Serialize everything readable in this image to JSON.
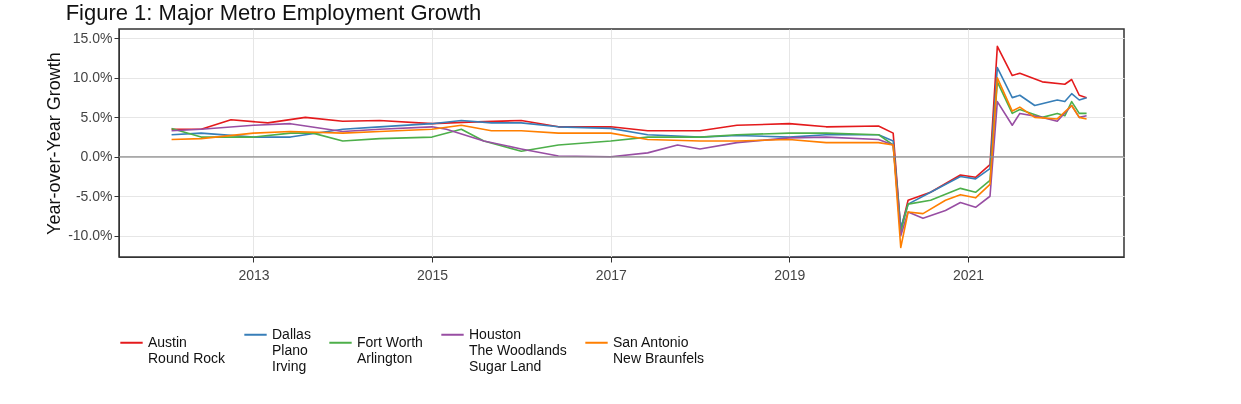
{
  "chart_data": {
    "type": "line",
    "title": "Figure 1: Major Metro Employment Growth",
    "ylabel": "Year-over-Year Growth",
    "xlim": [
      "2011-07",
      "2022-10"
    ],
    "xticks": [
      "2013",
      "2015",
      "2017",
      "2019",
      "2021"
    ],
    "ylim": [
      -12.7,
      16.2
    ],
    "yticks": [
      {
        "value": -10,
        "label": "-10.0%"
      },
      {
        "value": -5,
        "label": "-5.0%"
      },
      {
        "value": 0,
        "label": "0.0%"
      },
      {
        "value": 5,
        "label": "5.0%"
      },
      {
        "value": 10,
        "label": "10.0%"
      },
      {
        "value": 15,
        "label": "15.0%"
      }
    ],
    "grid": true,
    "legend": "bottom",
    "ref_lines": [
      {
        "axis": "y",
        "value": 0,
        "color": "#8c8c8c"
      }
    ],
    "series": [
      {
        "name": "Austin\nRound Rock",
        "color": "#e41a1c",
        "x": [
          "2012-02",
          "2012-06",
          "2012-10",
          "2013-03",
          "2013-08",
          "2014-01",
          "2014-06",
          "2015-01",
          "2015-06",
          "2016-01",
          "2016-06",
          "2017-01",
          "2017-06",
          "2018-01",
          "2018-06",
          "2019-01",
          "2019-06",
          "2020-01",
          "2020-03",
          "2020-04",
          "2020-05",
          "2020-08",
          "2020-12",
          "2021-02",
          "2021-04",
          "2021-05",
          "2021-07",
          "2021-08",
          "2021-11",
          "2022-02",
          "2022-03",
          "2022-04",
          "2022-05"
        ],
        "values": [
          3.5,
          3.5,
          4.7,
          4.3,
          5.0,
          4.5,
          4.6,
          4.2,
          4.4,
          4.6,
          3.8,
          3.8,
          3.3,
          3.3,
          4.0,
          4.2,
          3.8,
          3.9,
          3.0,
          -9.3,
          -5.5,
          -4.5,
          -2.3,
          -2.6,
          -1,
          14,
          10.3,
          10.6,
          9.5,
          9.2,
          9.8,
          7.8,
          7.5
        ]
      },
      {
        "name": "Dallas\nPlano\nIrving",
        "color": "#377eb8",
        "x": [
          "2012-02",
          "2012-06",
          "2013-01",
          "2013-06",
          "2014-01",
          "2014-06",
          "2015-01",
          "2015-05",
          "2015-09",
          "2016-01",
          "2016-06",
          "2017-01",
          "2017-06",
          "2018-01",
          "2018-06",
          "2019-01",
          "2019-06",
          "2020-01",
          "2020-03",
          "2020-04",
          "2020-05",
          "2020-08",
          "2020-12",
          "2021-02",
          "2021-04",
          "2021-05",
          "2021-07",
          "2021-08",
          "2021-10",
          "2022-01",
          "2022-02",
          "2022-03",
          "2022-04",
          "2022-05"
        ],
        "values": [
          2.8,
          3.0,
          2.5,
          2.5,
          3.5,
          3.8,
          4.2,
          4.6,
          4.3,
          4.3,
          3.8,
          3.6,
          2.8,
          2.5,
          2.7,
          2.5,
          2.8,
          2.8,
          2.0,
          -9,
          -6,
          -4.5,
          -2.5,
          -2.8,
          -1.5,
          11.3,
          7.5,
          7.8,
          6.5,
          7.2,
          7.0,
          8.0,
          7.2,
          7.5
        ]
      },
      {
        "name": "Fort Worth\nArlington",
        "color": "#4daf4a",
        "x": [
          "2012-02",
          "2012-06",
          "2013-01",
          "2013-06",
          "2013-09",
          "2014-01",
          "2014-06",
          "2015-01",
          "2015-05",
          "2015-08",
          "2016-01",
          "2016-06",
          "2017-01",
          "2017-06",
          "2018-01",
          "2018-06",
          "2019-01",
          "2019-06",
          "2020-01",
          "2020-03",
          "2020-04",
          "2020-05",
          "2020-08",
          "2020-12",
          "2021-02",
          "2021-04",
          "2021-05",
          "2021-07",
          "2021-08",
          "2021-11",
          "2022-01",
          "2022-02",
          "2022-03",
          "2022-04",
          "2022-05"
        ],
        "values": [
          3.6,
          2.5,
          2.5,
          3.0,
          3.0,
          2.0,
          2.3,
          2.5,
          3.5,
          2.0,
          0.7,
          1.5,
          2.0,
          2.5,
          2.5,
          2.8,
          3.0,
          3.0,
          2.8,
          1.5,
          -9.5,
          -6,
          -5.5,
          -4,
          -4.5,
          -3,
          9.5,
          5.5,
          6.0,
          5.0,
          5.5,
          5.2,
          7.0,
          5.5,
          5.5
        ]
      },
      {
        "name": "Houston\nThe Woodlands\nSugar Land",
        "color": "#984ea3",
        "x": [
          "2012-02",
          "2012-06",
          "2013-01",
          "2013-06",
          "2014-01",
          "2014-06",
          "2015-01",
          "2015-03",
          "2015-08",
          "2016-01",
          "2016-06",
          "2017-01",
          "2017-06",
          "2017-10",
          "2018-01",
          "2018-06",
          "2019-01",
          "2019-06",
          "2020-01",
          "2020-03",
          "2020-04",
          "2020-05",
          "2020-07",
          "2020-10",
          "2020-12",
          "2021-02",
          "2021-04",
          "2021-05",
          "2021-07",
          "2021-08",
          "2021-11",
          "2022-01",
          "2022-03",
          "2022-04",
          "2022-05"
        ],
        "values": [
          3.3,
          3.5,
          4.0,
          4.2,
          3.2,
          3.5,
          3.8,
          3.5,
          2.0,
          1.0,
          0.1,
          0,
          0.5,
          1.5,
          1.0,
          1.8,
          2.4,
          2.5,
          2.2,
          1.5,
          -10,
          -7,
          -7.8,
          -6.8,
          -5.8,
          -6.4,
          -5,
          7,
          4.0,
          5.5,
          5.0,
          4.5,
          6.5,
          5.0,
          5.2
        ]
      },
      {
        "name": "San Antonio\nNew Braunfels",
        "color": "#ff7f00",
        "x": [
          "2012-02",
          "2012-06",
          "2013-01",
          "2013-06",
          "2014-01",
          "2014-06",
          "2015-01",
          "2015-05",
          "2015-09",
          "2016-01",
          "2016-06",
          "2017-01",
          "2017-06",
          "2018-01",
          "2018-06",
          "2019-01",
          "2019-06",
          "2020-01",
          "2020-03",
          "2020-04",
          "2020-05",
          "2020-07",
          "2020-10",
          "2020-12",
          "2021-02",
          "2021-04",
          "2021-05",
          "2021-07",
          "2021-08",
          "2021-10",
          "2022-01",
          "2022-03",
          "2022-04",
          "2022-05"
        ],
        "values": [
          2.2,
          2.3,
          3.0,
          3.2,
          3.0,
          3.2,
          3.5,
          4.0,
          3.3,
          3.3,
          3.0,
          3.0,
          2.2,
          2.0,
          2.0,
          2.2,
          1.8,
          1.8,
          1.5,
          -11.5,
          -7,
          -7.2,
          -5.5,
          -4.8,
          -5.2,
          -3.5,
          10,
          5.8,
          6.3,
          5.0,
          4.8,
          6.5,
          5.0,
          4.8
        ]
      }
    ]
  }
}
